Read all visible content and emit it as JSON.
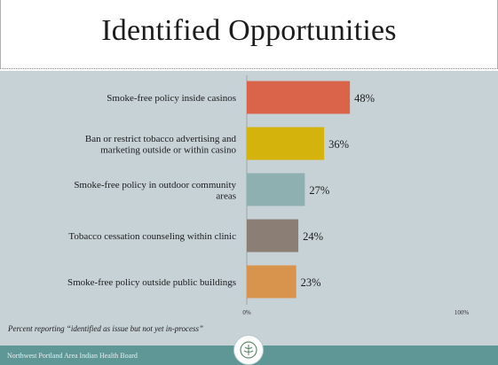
{
  "slide": {
    "title": "Identified Opportunities",
    "note": "Percent reporting “identified as issue but not yet in-process”",
    "footer": "Northwest Portland Area Indian Health Board"
  },
  "colors": {
    "background": "#c7d2d7",
    "footer_band": "#5f9696"
  },
  "chart_data": {
    "type": "bar",
    "orientation": "horizontal",
    "categories": [
      [
        "Smoke-free policy inside casinos"
      ],
      [
        "Ban or restrict tobacco advertising and",
        "marketing outside or within casino"
      ],
      [
        "Smoke-free policy in outdoor community",
        "areas"
      ],
      [
        "Tobacco cessation counseling within clinic"
      ],
      [
        "Smoke-free policy outside public buildings"
      ]
    ],
    "values": [
      48,
      36,
      27,
      24,
      23
    ],
    "value_labels": [
      "48%",
      "36%",
      "27%",
      "24%",
      "23%"
    ],
    "bar_colors": [
      "#d9644a",
      "#d4b40c",
      "#8eb0b0",
      "#8b7e74",
      "#d8944c"
    ],
    "xlim": [
      0,
      100
    ],
    "x_tick_labels": [
      "0%",
      "100%"
    ],
    "grid": false
  }
}
